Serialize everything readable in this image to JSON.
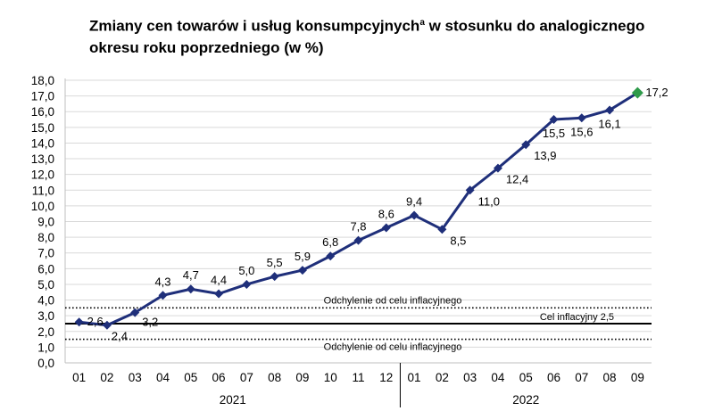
{
  "title": {
    "main": "Zmiany cen towarów i usług konsumpcyjnych",
    "sup": "a",
    "rest": " w stosunku do analogicznego okresu roku poprzedniego (w %)"
  },
  "chart_data": {
    "type": "line",
    "title": "Zmiany cen towarów i usług konsumpcyjnychᵃ w stosunku do analogicznego okresu roku poprzedniego (w %)",
    "xlabel": "",
    "ylabel": "",
    "ylim": [
      0,
      18
    ],
    "y_ticks": [
      "0,0",
      "1,0",
      "2,0",
      "3,0",
      "4,0",
      "5,0",
      "6,0",
      "7,0",
      "8,0",
      "9,0",
      "10,0",
      "11,0",
      "12,0",
      "13,0",
      "14,0",
      "15,0",
      "16,0",
      "17,0",
      "18,0"
    ],
    "categories": [
      "01",
      "02",
      "03",
      "04",
      "05",
      "06",
      "07",
      "08",
      "09",
      "10",
      "11",
      "12",
      "01",
      "02",
      "03",
      "04",
      "05",
      "06",
      "07",
      "08",
      "09"
    ],
    "years": [
      {
        "label": "2021",
        "from": 0,
        "to": 11
      },
      {
        "label": "2022",
        "from": 12,
        "to": 20
      }
    ],
    "series": [
      {
        "values": [
          2.6,
          2.4,
          3.2,
          4.3,
          4.7,
          4.4,
          5.0,
          5.5,
          5.9,
          6.8,
          7.8,
          8.6,
          9.4,
          8.5,
          11.0,
          12.4,
          13.9,
          15.5,
          15.6,
          16.1,
          17.2
        ],
        "labels": [
          "2,6",
          "2,4",
          "3,2",
          "4,3",
          "4,7",
          "4,4",
          "5,0",
          "5,5",
          "5,9",
          "6,8",
          "7,8",
          "8,6",
          "9,4",
          "8,5",
          "11,0",
          "12,4",
          "13,9",
          "15,5",
          "15,6",
          "16,1",
          "17,2"
        ],
        "color": "#1f2f7a",
        "last_point_color": "#2e9a4a"
      }
    ],
    "reference_lines": [
      {
        "value": 3.5,
        "label": "Odchylenie od celu inflacyjnego",
        "style": "dotted"
      },
      {
        "value": 2.5,
        "label": "Cel inflacyjny 2,5",
        "style": "solid"
      },
      {
        "value": 1.5,
        "label": "Odchylenie od celu inflacyjnego",
        "style": "dotted"
      }
    ],
    "grid": true,
    "legend": "none"
  }
}
